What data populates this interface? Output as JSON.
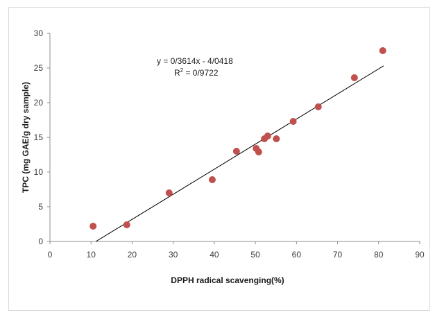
{
  "chart_data": {
    "type": "scatter",
    "xlabel": "DPPH radical scavenging(%)",
    "ylabel": "TPC (mg GAE/g dry sample)",
    "xlim": [
      0,
      90
    ],
    "ylim": [
      0,
      30
    ],
    "xticks": [
      0,
      10,
      20,
      30,
      40,
      50,
      60,
      70,
      80,
      90
    ],
    "yticks": [
      0,
      5,
      10,
      15,
      20,
      25,
      30
    ],
    "grid": false,
    "legend": false,
    "marker_color": "#c0504d",
    "trendline_color": "#000000",
    "series": [
      {
        "x": [
          10.5,
          18.7,
          29.0,
          39.5,
          45.4,
          50.2,
          50.8,
          52.2,
          53.0,
          55.1,
          59.2,
          65.3,
          74.1,
          81.0
        ],
        "y": [
          2.2,
          2.4,
          7.0,
          8.9,
          13.0,
          13.4,
          12.9,
          14.8,
          15.2,
          14.8,
          17.3,
          19.4,
          23.6,
          27.5
        ]
      }
    ],
    "trendline": {
      "slope": 0.3614,
      "intercept": -4.0418,
      "x_range": [
        11.2,
        81.2
      ]
    },
    "annotations": {
      "equation": "y = 0/3614x - 4/0418",
      "r_squared_prefix": "R",
      "r_squared_sup": "2",
      "r_squared_suffix": " = 0/9722"
    }
  }
}
